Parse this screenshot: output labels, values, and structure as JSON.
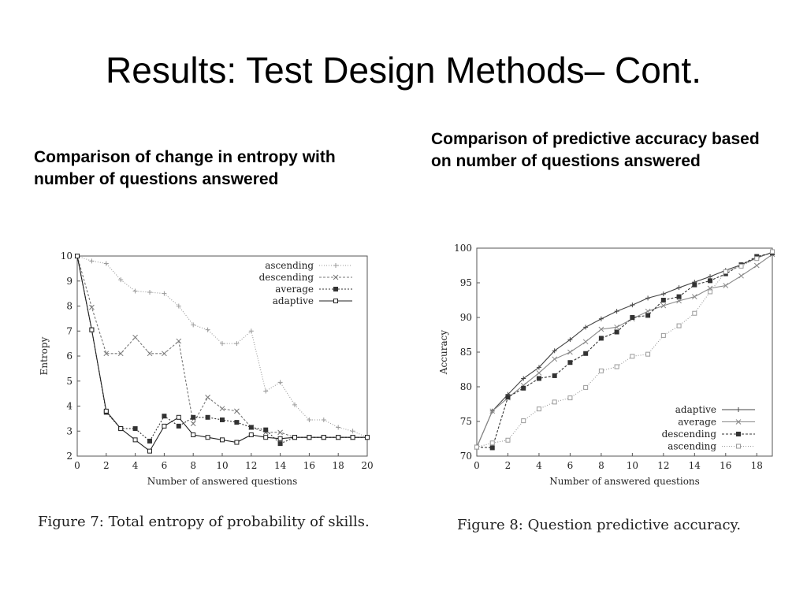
{
  "slide": {
    "title": "Results: Test Design Methods– Cont.",
    "left_heading": "Comparison of change in entropy with number of questions answered",
    "right_heading": "Comparison of predictive accuracy based on number of questions answered"
  },
  "chart_data": [
    {
      "type": "line",
      "caption": "Figure 7:  Total entropy of probability of skills.",
      "xlabel": "Number of answered questions",
      "ylabel": "Entropy",
      "xlim": [
        0,
        20
      ],
      "ylim": [
        2,
        10
      ],
      "x_ticks": [
        0,
        2,
        4,
        6,
        8,
        10,
        12,
        14,
        16,
        18,
        20
      ],
      "y_ticks": [
        2,
        3,
        4,
        5,
        6,
        7,
        8,
        9,
        10
      ],
      "grid": false,
      "legend_position": "top-right",
      "x": [
        0,
        1,
        2,
        3,
        4,
        5,
        6,
        7,
        8,
        9,
        10,
        11,
        12,
        13,
        14,
        15,
        16,
        17,
        18,
        19,
        20
      ],
      "series": [
        {
          "name": "ascending",
          "marker": "+",
          "dash": "1 2",
          "color": "#9a9a9a",
          "values": [
            10,
            9.8,
            9.7,
            9.05,
            8.6,
            8.55,
            8.5,
            8.0,
            7.25,
            7.05,
            6.5,
            6.5,
            7.0,
            4.6,
            4.95,
            4.05,
            3.45,
            3.45,
            3.15,
            3.0,
            2.75
          ]
        },
        {
          "name": "descending",
          "marker": "x",
          "dash": "3 2",
          "color": "#777777",
          "values": [
            10,
            7.95,
            6.1,
            6.1,
            6.75,
            6.1,
            6.1,
            6.6,
            3.3,
            4.35,
            3.9,
            3.8,
            3.15,
            2.95,
            2.95,
            2.75,
            2.75,
            2.75,
            2.75,
            2.75,
            2.75
          ]
        },
        {
          "name": "average",
          "marker": "filled-square",
          "dash": "2 2",
          "color": "#333333",
          "values": [
            10,
            7.05,
            3.75,
            3.1,
            3.1,
            2.6,
            3.6,
            3.2,
            3.55,
            3.55,
            3.45,
            3.35,
            3.15,
            3.05,
            2.5,
            2.75,
            2.75,
            2.75,
            2.75,
            2.75,
            2.75
          ]
        },
        {
          "name": "adaptive",
          "marker": "open-square",
          "dash": "",
          "color": "#222222",
          "values": [
            10,
            7.05,
            3.8,
            3.1,
            2.65,
            2.2,
            3.2,
            3.55,
            2.85,
            2.75,
            2.65,
            2.55,
            2.85,
            2.75,
            2.7,
            2.75,
            2.75,
            2.75,
            2.75,
            2.75,
            2.75
          ]
        }
      ]
    },
    {
      "type": "line",
      "caption": "Figure 8:  Question predictive accuracy.",
      "xlabel": "Number of answered questions",
      "ylabel": "Accuracy",
      "xlim": [
        0,
        19
      ],
      "ylim": [
        70,
        100
      ],
      "x_ticks": [
        0,
        2,
        4,
        6,
        8,
        10,
        12,
        14,
        16,
        18
      ],
      "y_ticks": [
        70,
        75,
        80,
        85,
        90,
        95,
        100
      ],
      "grid": false,
      "legend_position": "bottom-right",
      "x": [
        0,
        1,
        2,
        3,
        4,
        5,
        6,
        7,
        8,
        9,
        10,
        11,
        12,
        13,
        14,
        15,
        16,
        17,
        18,
        19
      ],
      "series": [
        {
          "name": "adaptive",
          "marker": "+",
          "dash": "",
          "color": "#444444",
          "values": [
            71.3,
            76.5,
            78.9,
            81.2,
            82.8,
            85.2,
            86.8,
            88.6,
            89.8,
            90.9,
            91.8,
            92.8,
            93.4,
            94.3,
            95.1,
            95.9,
            96.8,
            97.6,
            98.6,
            99.4
          ]
        },
        {
          "name": "average",
          "marker": "x",
          "dash": "",
          "color": "#888888",
          "values": [
            71.3,
            76.5,
            78.4,
            80.2,
            82.0,
            84.0,
            85.0,
            86.5,
            88.3,
            88.6,
            89.8,
            90.9,
            91.7,
            92.4,
            93.0,
            94.2,
            94.6,
            96.0,
            97.5,
            99.1
          ]
        },
        {
          "name": "descending",
          "marker": "filled-square",
          "dash": "3 2",
          "color": "#333333",
          "values": [
            71.3,
            71.2,
            78.5,
            79.8,
            81.2,
            81.6,
            83.5,
            84.8,
            87.0,
            87.9,
            90.0,
            90.3,
            92.5,
            93.0,
            94.7,
            95.3,
            96.3,
            97.6,
            98.8,
            99.3
          ]
        },
        {
          "name": "ascending",
          "marker": "open-square",
          "dash": "1 2",
          "color": "#9a9a9a",
          "values": [
            71.3,
            71.9,
            72.3,
            75.1,
            76.8,
            77.8,
            78.4,
            79.9,
            82.3,
            82.9,
            84.4,
            84.7,
            87.4,
            88.8,
            90.6,
            93.7,
            96.6,
            97.4,
            98.5,
            99.5
          ]
        }
      ]
    }
  ]
}
